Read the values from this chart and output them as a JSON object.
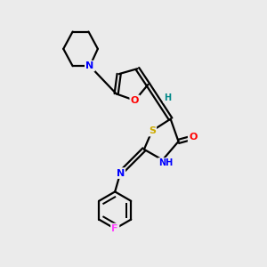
{
  "background_color": "#ebebeb",
  "fig_size": [
    3.0,
    3.0
  ],
  "dpi": 100,
  "atom_colors": {
    "C": "#000000",
    "N": "#0000ff",
    "O": "#ff0000",
    "S": "#ccaa00",
    "F": "#ff44ff",
    "H": "#008888"
  },
  "bond_color": "#000000",
  "bond_width": 1.6,
  "font_size_atoms": 8,
  "font_size_h": 7
}
